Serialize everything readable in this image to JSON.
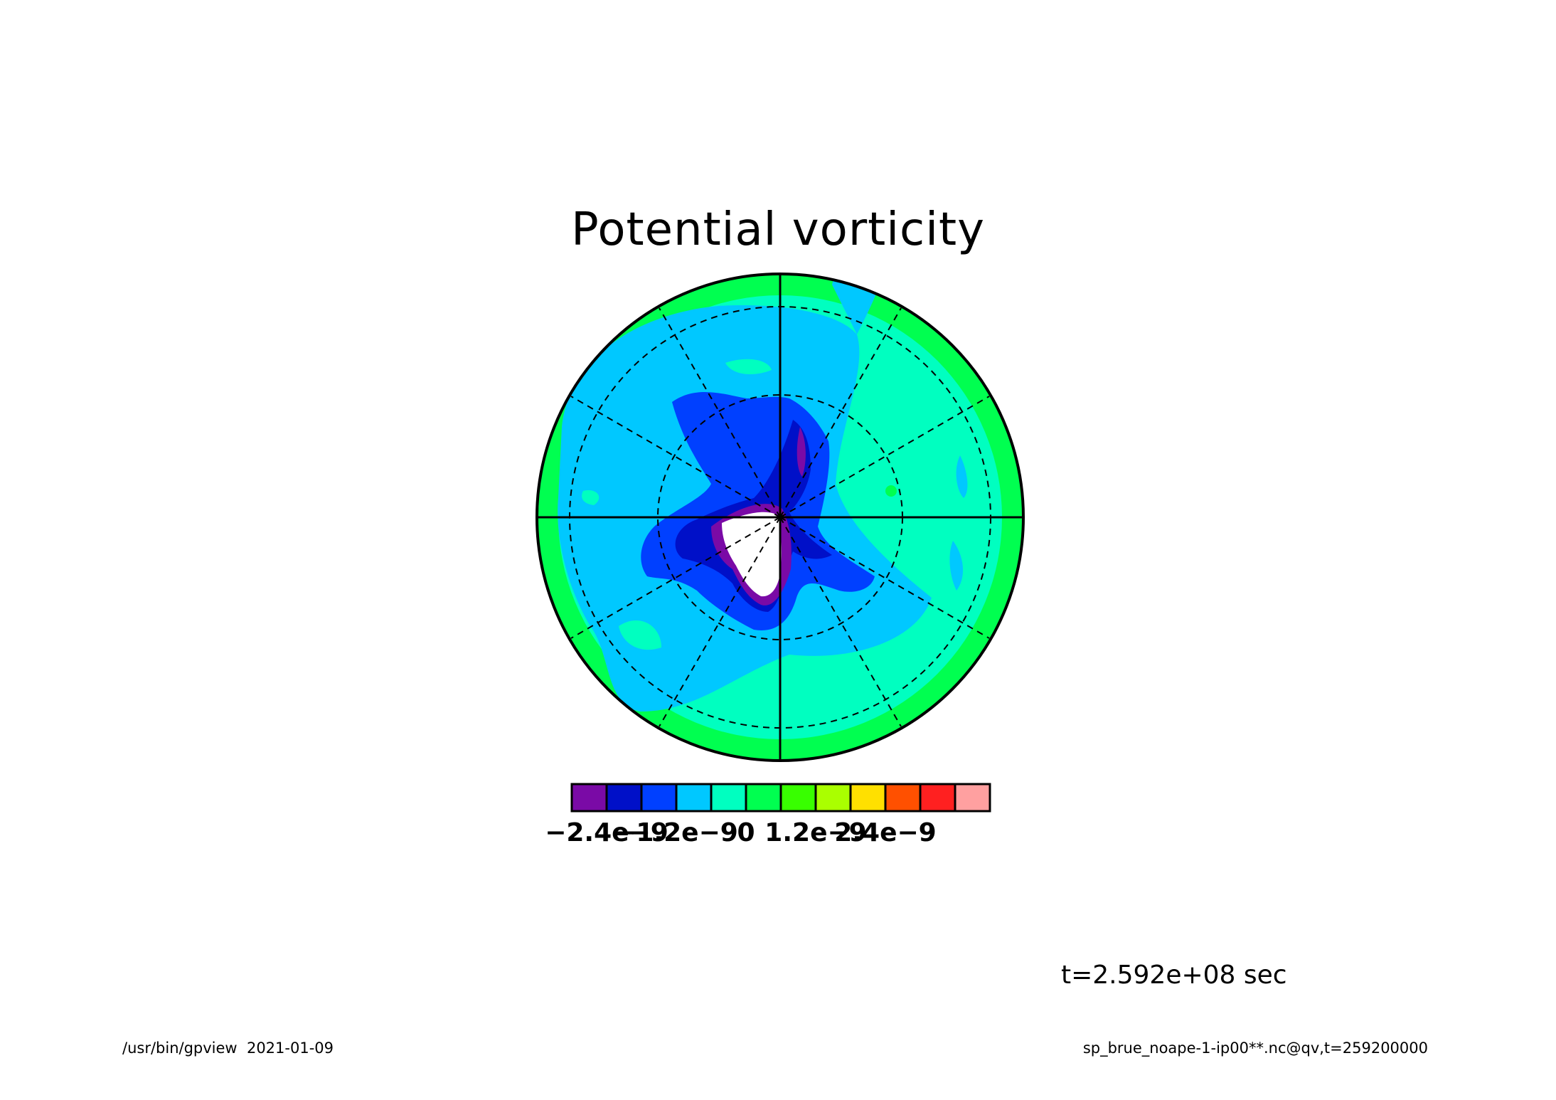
{
  "title": "Potential vorticity",
  "time_label": "t=2.592e+08 sec",
  "footer_left": "/usr/bin/gpview  2021-01-09",
  "footer_right": "sp_brue_noape-1-ip00**.nc@qv,t=259200000",
  "colorbar": {
    "colors": [
      "#7a0aa6",
      "#0010c8",
      "#0040ff",
      "#00c8ff",
      "#00ffc0",
      "#00ff50",
      "#38ff00",
      "#aaff00",
      "#ffe000",
      "#ff5000",
      "#ff2020",
      "#ffa0a0"
    ],
    "tick_labels": [
      "-2.4e-9",
      "-1.2e-9",
      "0",
      "1.2e-9",
      "2.4e-9"
    ],
    "tick_values": [
      -2.4e-09,
      -1.2e-09,
      0,
      1.2e-09,
      2.4e-09
    ],
    "levels": [
      -3e-09,
      -2.4e-09,
      -1.8e-09,
      -1.2e-09,
      -6e-10,
      0,
      6e-10,
      1.2e-09,
      1.8e-09,
      2.4e-09,
      3e-09,
      3.6e-09,
      4.2e-09
    ]
  },
  "chart_data": {
    "type": "heatmap",
    "projection": "polar stereographic",
    "title": "Potential vorticity",
    "value_range": [
      -3e-09,
      4.2e-09
    ],
    "grid": true,
    "legend": "colorbar bottom"
  }
}
